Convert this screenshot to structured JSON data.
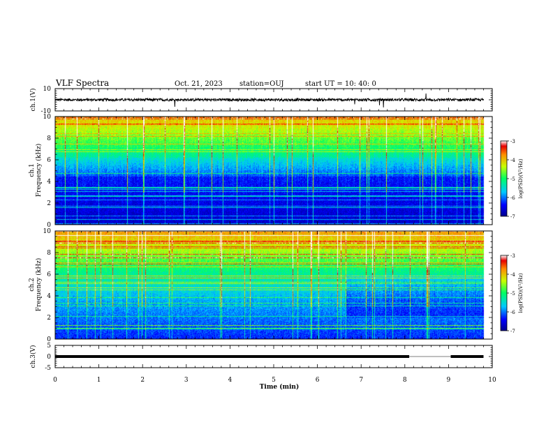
{
  "header": {
    "title": "VLF Spectra",
    "date": "Oct. 21, 2023",
    "station": "station=OUJ",
    "start_ut": "start  UT =  10: 40: 0"
  },
  "chart_data": [
    {
      "type": "line",
      "panel": "ch.1 waveform",
      "ylabel": "ch.1(V)",
      "ylim": [
        -10,
        10
      ],
      "yticks": [
        "10",
        "-10"
      ],
      "xlim": [
        0,
        10
      ],
      "series": [
        {
          "color": "#000000",
          "baseline": 0,
          "noise_amplitude": 1.2
        }
      ]
    },
    {
      "type": "heatmap",
      "panel": "ch.1 spectrogram",
      "ylabel_top": "ch.1",
      "ylabel": "Frequency (kHz)",
      "ylim": [
        0,
        10
      ],
      "yticks": [
        "0",
        "2",
        "4",
        "6",
        "8",
        "10"
      ],
      "xlim": [
        0,
        10
      ],
      "data_end_min": 9.8,
      "colorbar": {
        "label": "log(PSD)(V²/Hz)",
        "range": [
          -7,
          -3
        ],
        "ticks": [
          "-3",
          "-4",
          "-5",
          "-6",
          "-7"
        ]
      }
    },
    {
      "type": "heatmap",
      "panel": "ch.2 spectrogram",
      "ylabel_top": "ch.2",
      "ylabel": "Frequency (kHz)",
      "ylim": [
        0,
        10
      ],
      "yticks": [
        "0",
        "2",
        "4",
        "6",
        "8",
        "10"
      ],
      "xlim": [
        0,
        10
      ],
      "data_end_min": 9.8,
      "colorbar": {
        "label": "log(PSD)(V²/Hz)",
        "range": [
          -7,
          -3
        ],
        "ticks": [
          "-3",
          "-4",
          "-5",
          "-6",
          "-7"
        ]
      }
    },
    {
      "type": "line",
      "panel": "ch.3 waveform",
      "ylabel": "ch.3(V)",
      "ylim": [
        -5,
        5
      ],
      "yticks": [
        "5",
        "0",
        "-5"
      ],
      "xlim": [
        0,
        10
      ],
      "series": [
        {
          "color": "#000000",
          "baseline": 0,
          "gaps_min": [
            [
              8.1,
              9.05
            ]
          ]
        }
      ]
    }
  ],
  "xaxis": {
    "label": "Time (min)",
    "ticks": [
      "0",
      "1",
      "2",
      "3",
      "4",
      "5",
      "6",
      "7",
      "8",
      "9",
      "10"
    ]
  }
}
